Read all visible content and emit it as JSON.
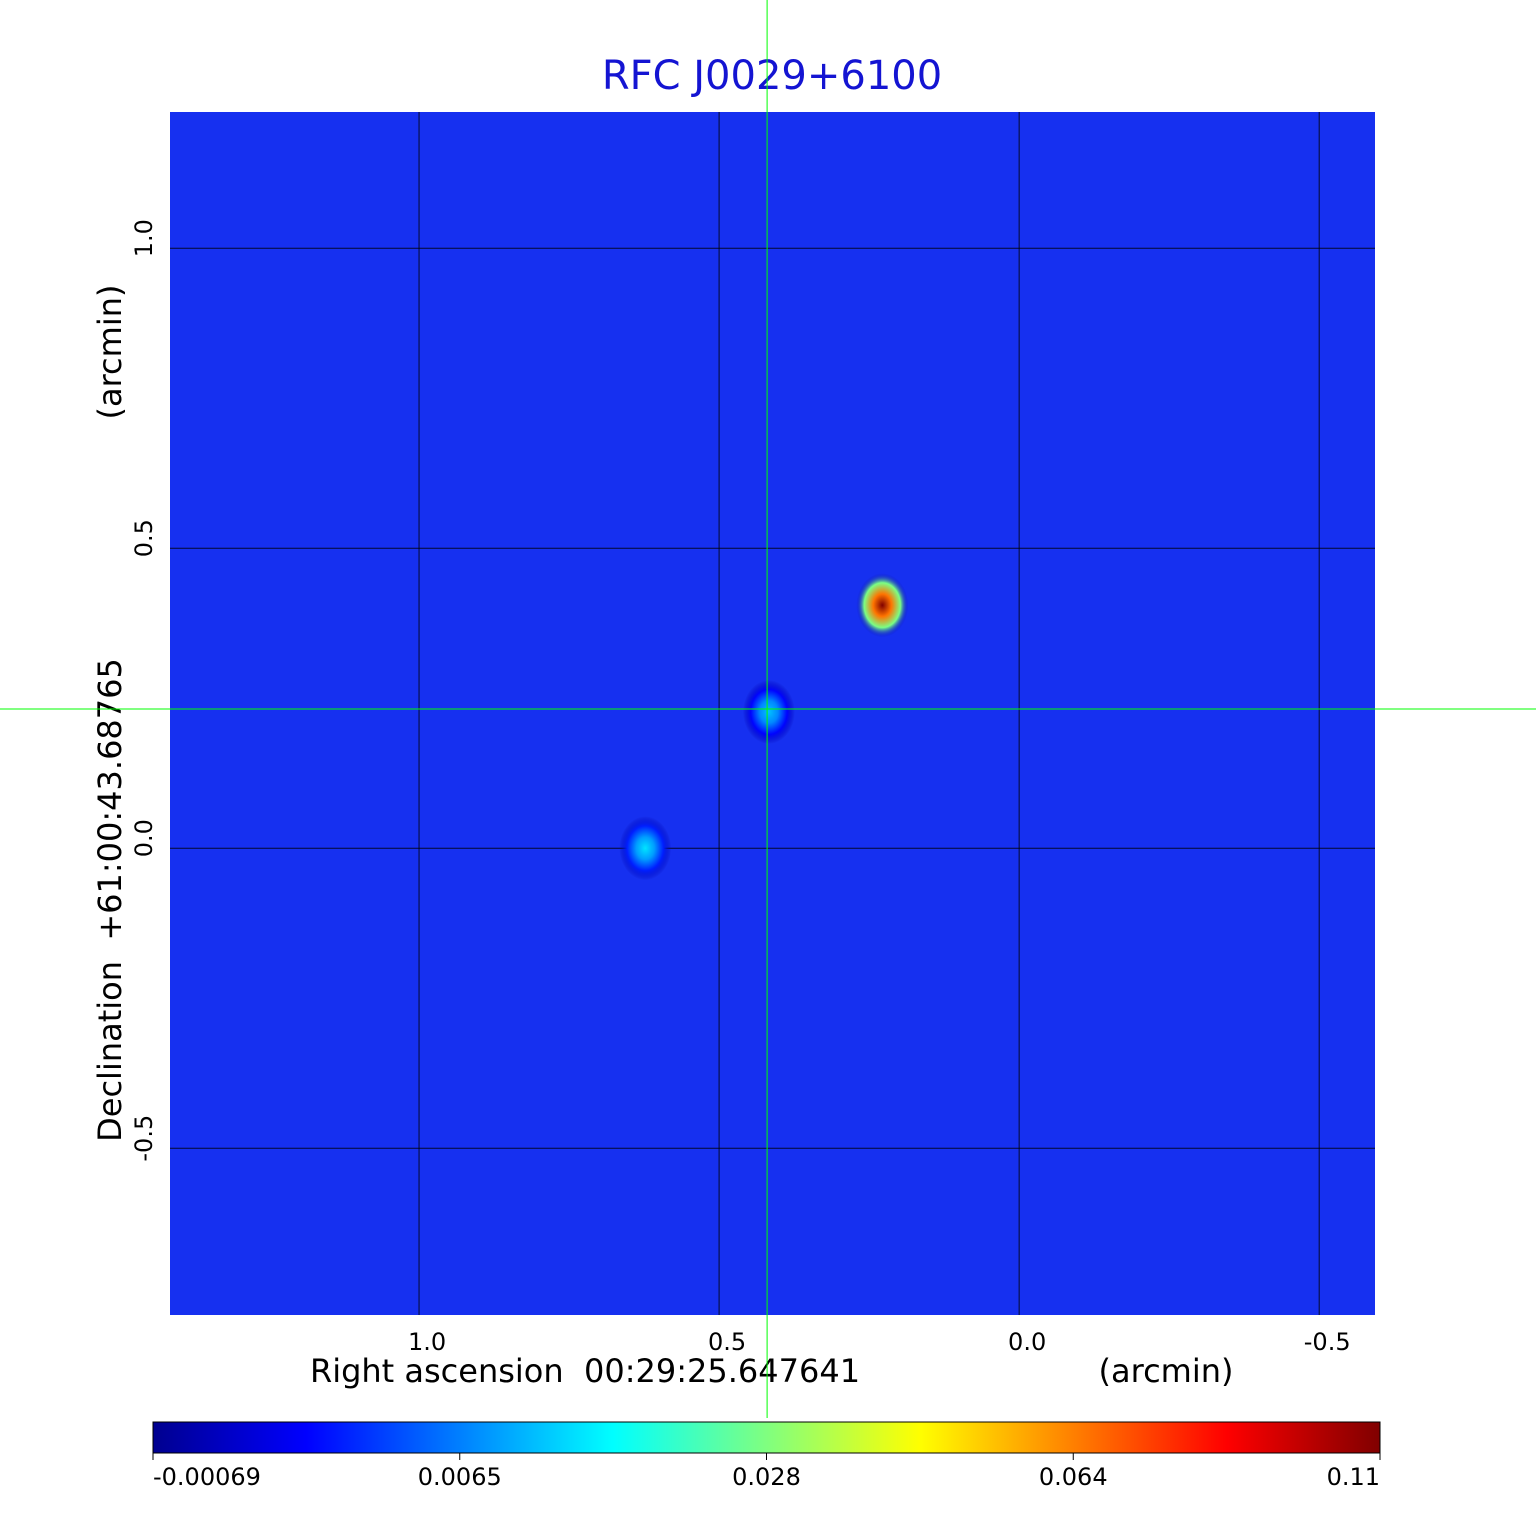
{
  "chart_data": {
    "type": "image",
    "title": "RFC J0029+6100",
    "x_label": "Right ascension  00:29:25.647641",
    "x_unit": "(arcmin)",
    "y_label": "Declination  +61:00:43.68765",
    "y_unit": "(arcmin)",
    "xlim": [
      1.415,
      -0.593
    ],
    "ylim": [
      -0.778,
      1.227
    ],
    "xticks": [
      {
        "value": 1,
        "label": "1.0"
      },
      0.5,
      {
        "value": 0,
        "label": "0.0"
      },
      -0.5
    ],
    "yticks": [
      {
        "value": 1,
        "label": "1.0"
      },
      0.5,
      {
        "value": 0,
        "label": "0.0"
      },
      -0.5
    ],
    "grid": true,
    "x": [
      0.228,
      0.417,
      0.623
    ],
    "y": [
      0.405,
      0.227,
      0.0
    ],
    "values": [
      0.11,
      0.012,
      0.015
    ],
    "crosshair": {
      "x": 0.42,
      "y": 0.232,
      "color": "#00ff00"
    },
    "colorbar_ticks": [
      -0.00069,
      0.0065,
      0.028,
      0.064,
      0.11
    ],
    "colormap": [
      "#00008f",
      "#0000ff",
      "#00ffff",
      "#ffff00",
      "#ff0000",
      "#800000"
    ]
  }
}
